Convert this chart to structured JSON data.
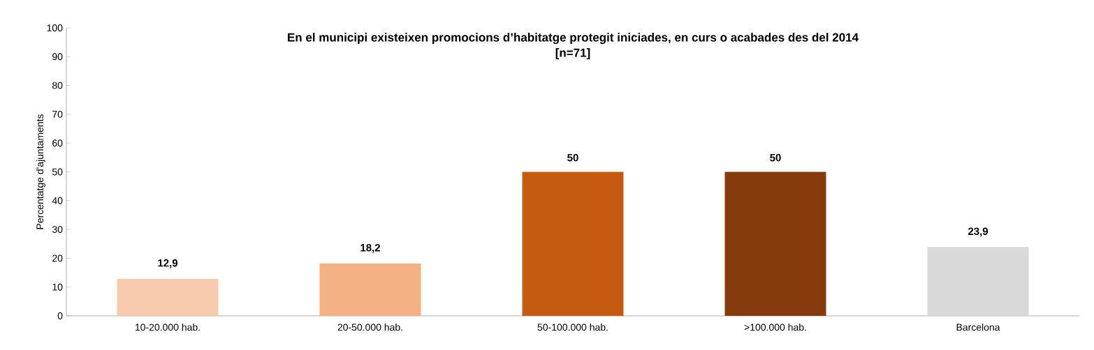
{
  "chart_data": {
    "type": "bar",
    "title": "En el municipi existeixen promocions d’habitatge protegit iniciades, en curs o acabades des del 2014",
    "subtitle": "[n=71]",
    "ylabel": "Percentatge d'ajuntaments",
    "categories": [
      "10-20.000 hab.",
      "20-50.000 hab.",
      "50-100.000 hab.",
      ">100.000 hab.",
      "Barcelona"
    ],
    "values": [
      12.9,
      18.2,
      50,
      50,
      23.9
    ],
    "colors": [
      "#f8cbad",
      "#f4b183",
      "#c55a11",
      "#843c0c",
      "#d9d9d9"
    ],
    "value_labels": [
      "12,9",
      "18,2",
      "50",
      "50",
      "23,9"
    ],
    "ylim": [
      0,
      100
    ],
    "yticks": [
      0,
      10,
      20,
      30,
      40,
      50,
      60,
      70,
      80,
      90,
      100
    ],
    "grid": false
  }
}
